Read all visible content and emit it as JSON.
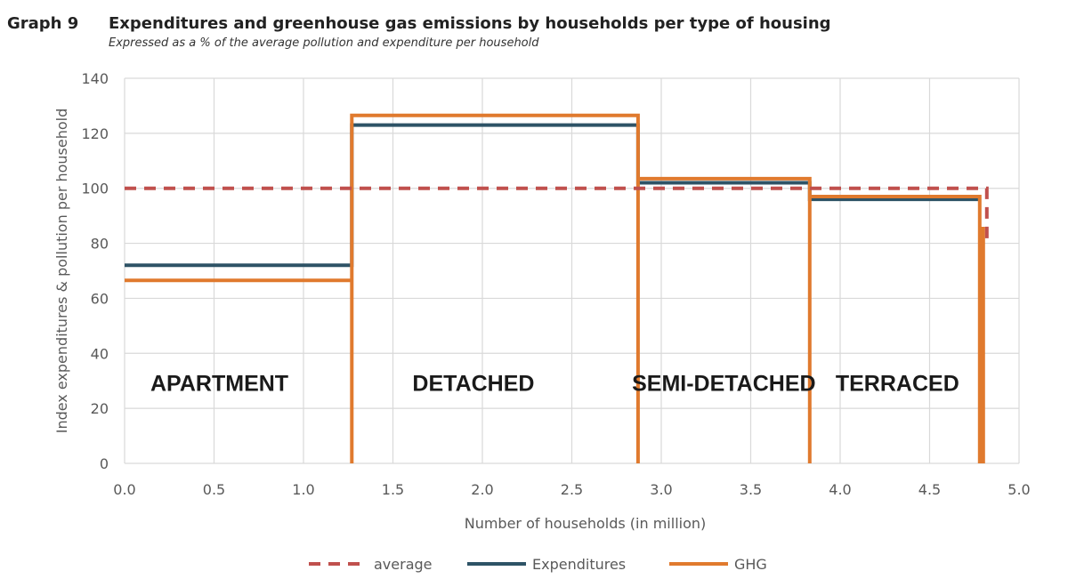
{
  "header": {
    "graph_number": "Graph 9",
    "title": "Expenditures and greenhouse gas emissions by households per type of housing",
    "subtitle": "Expressed as a % of the average pollution and expenditure per household"
  },
  "colors": {
    "average": "#c0504d",
    "expenditures": "#2e5366",
    "ghg": "#e07a2e",
    "grid": "#d9d9d9"
  },
  "chart_data": {
    "type": "line",
    "title": "Expenditures and greenhouse gas emissions by households per type of housing",
    "subtitle": "Expressed as a % of the average pollution and expenditure per household",
    "xlabel": "Number of households (in million)",
    "ylabel": "Index expenditures & pollution per household",
    "xlim": [
      0,
      5
    ],
    "ylim": [
      0,
      140
    ],
    "x_ticks": [
      "0.0",
      "0.5",
      "1.0",
      "1.5",
      "2.0",
      "2.5",
      "3.0",
      "3.5",
      "4.0",
      "4.5",
      "5.0"
    ],
    "y_ticks": [
      "0",
      "20",
      "40",
      "60",
      "80",
      "100",
      "120",
      "140"
    ],
    "grid": true,
    "legend_position": "bottom",
    "series": [
      {
        "name": "average",
        "style": "dashed",
        "x": [
          0,
          4.82,
          4.82
        ],
        "y": [
          100,
          100,
          80
        ]
      },
      {
        "name": "Expenditures",
        "style": "solid",
        "x": [
          0,
          1.27,
          1.27,
          2.87,
          2.87,
          3.83,
          3.83,
          4.78
        ],
        "y": [
          72,
          72,
          123,
          123,
          102,
          102,
          96,
          96
        ]
      },
      {
        "name": "GHG",
        "style": "solid",
        "x": [
          0,
          1.27,
          1.27,
          1.27,
          2.87,
          2.87,
          2.87,
          3.83,
          3.83,
          3.83,
          4.78,
          4.78,
          4.8,
          4.8
        ],
        "y": [
          66.5,
          66.5,
          0,
          126.5,
          126.5,
          0,
          103.5,
          103.5,
          0,
          97,
          97,
          0,
          86,
          0
        ]
      }
    ],
    "annotations": [
      {
        "text": "APARTMENT",
        "x": 0.53,
        "y": 29
      },
      {
        "text": "DETACHED",
        "x": 1.95,
        "y": 29
      },
      {
        "text": "SEMI-DETACHED",
        "x": 3.35,
        "y": 29
      },
      {
        "text": "TERRACED",
        "x": 4.32,
        "y": 29
      }
    ]
  }
}
